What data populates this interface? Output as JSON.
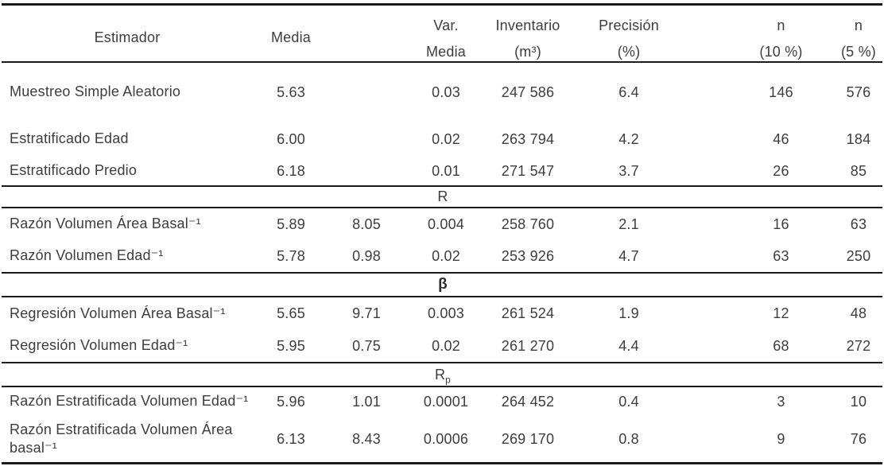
{
  "table": {
    "headers": {
      "estimador": "Estimador",
      "media": "Media",
      "var_media_line1": "Var.",
      "var_media_line2": "Media",
      "inventario_line1": "Inventario",
      "inventario_line2": "(m³)",
      "precision_line1": "Precisión",
      "precision_line2": "(%)",
      "n10_line1": "n",
      "n10_line2": "(10 %)",
      "n5_line1": "n",
      "n5_line2": "(5 %)"
    },
    "rows": [
      {
        "type": "data",
        "estimador": "Muestreo Simple Aleatorio",
        "media": "5.63",
        "ratio": "",
        "var_media": "0.03",
        "inventario": "247 586",
        "precision": "6.4",
        "n10": "146",
        "n5": "576"
      },
      {
        "type": "data",
        "estimador": "Estratificado Edad",
        "media": "6.00",
        "ratio": "",
        "var_media": "0.02",
        "inventario": "263 794",
        "precision": "4.2",
        "n10": "46",
        "n5": "184"
      },
      {
        "type": "data",
        "estimador": "Estratificado Predio",
        "media": "6.18",
        "ratio": "",
        "var_media": "0.01",
        "inventario": "271 547",
        "precision": "3.7",
        "n10": "26",
        "n5": "85"
      },
      {
        "type": "band",
        "label": "R",
        "sub": "",
        "bold": false
      },
      {
        "type": "data",
        "estimador": "Razón Volumen Área Basal⁻¹",
        "media": "5.89",
        "ratio": "8.05",
        "var_media": "0.004",
        "inventario": "258 760",
        "precision": "2.1",
        "n10": "16",
        "n5": "63"
      },
      {
        "type": "data",
        "estimador": "Razón Volumen Edad⁻¹",
        "media": "5.78",
        "ratio": "0.98",
        "var_media": "0.02",
        "inventario": "253 926",
        "precision": "4.7",
        "n10": "63",
        "n5": "250"
      },
      {
        "type": "band",
        "label": "β",
        "sub": "",
        "bold": true
      },
      {
        "type": "data",
        "estimador": "Regresión Volumen Área Basal⁻¹",
        "media": "5.65",
        "ratio": "9.71",
        "var_media": "0.003",
        "inventario": "261 524",
        "precision": "1.9",
        "n10": "12",
        "n5": "48"
      },
      {
        "type": "data",
        "estimador": "Regresión Volumen Edad⁻¹",
        "media": "5.95",
        "ratio": "0.75",
        "var_media": "0.02",
        "inventario": "261 270",
        "precision": "4.4",
        "n10": "68",
        "n5": "272"
      },
      {
        "type": "band",
        "label": "R",
        "sub": "p",
        "bold": false
      },
      {
        "type": "data",
        "estimador": "Razón Estratificada Volumen Edad⁻¹",
        "media": "5.96",
        "ratio": "1.01",
        "var_media": "0.0001",
        "inventario": "264 452",
        "precision": "0.4",
        "n10": "3",
        "n5": "10"
      },
      {
        "type": "data",
        "estimador": "Razón Estratificada Volumen Área",
        "estimador2": "basal⁻¹",
        "media": "6.13",
        "ratio": "8.43",
        "var_media": "0.0006",
        "inventario": "269 170",
        "precision": "0.8",
        "n10": "9",
        "n5": "76"
      }
    ]
  },
  "chart_data": {
    "type": "table",
    "columns": [
      "Estimador",
      "Media",
      "",
      "Var. Media",
      "Inventario (m³)",
      "Precisión (%)",
      "n (10 %)",
      "n (5 %)"
    ],
    "sections": [
      {
        "label": "",
        "rows": [
          [
            "Muestreo Simple Aleatorio",
            5.63,
            null,
            0.03,
            247586,
            6.4,
            146,
            576
          ],
          [
            "Estratificado Edad",
            6.0,
            null,
            0.02,
            263794,
            4.2,
            46,
            184
          ],
          [
            "Estratificado Predio",
            6.18,
            null,
            0.01,
            271547,
            3.7,
            26,
            85
          ]
        ]
      },
      {
        "label": "R",
        "rows": [
          [
            "Razón Volumen Área Basal⁻¹",
            5.89,
            8.05,
            0.004,
            258760,
            2.1,
            16,
            63
          ],
          [
            "Razón Volumen Edad⁻¹",
            5.78,
            0.98,
            0.02,
            253926,
            4.7,
            63,
            250
          ]
        ]
      },
      {
        "label": "β",
        "rows": [
          [
            "Regresión Volumen Área Basal⁻¹",
            5.65,
            9.71,
            0.003,
            261524,
            1.9,
            12,
            48
          ],
          [
            "Regresión Volumen Edad⁻¹",
            5.95,
            0.75,
            0.02,
            261270,
            4.4,
            68,
            272
          ]
        ]
      },
      {
        "label": "Rₚ",
        "rows": [
          [
            "Razón Estratificada Volumen Edad⁻¹",
            5.96,
            1.01,
            0.0001,
            264452,
            0.4,
            3,
            10
          ],
          [
            "Razón Estratificada Volumen Área basal⁻¹",
            6.13,
            8.43,
            0.0006,
            269170,
            0.8,
            9,
            76
          ]
        ]
      }
    ]
  }
}
